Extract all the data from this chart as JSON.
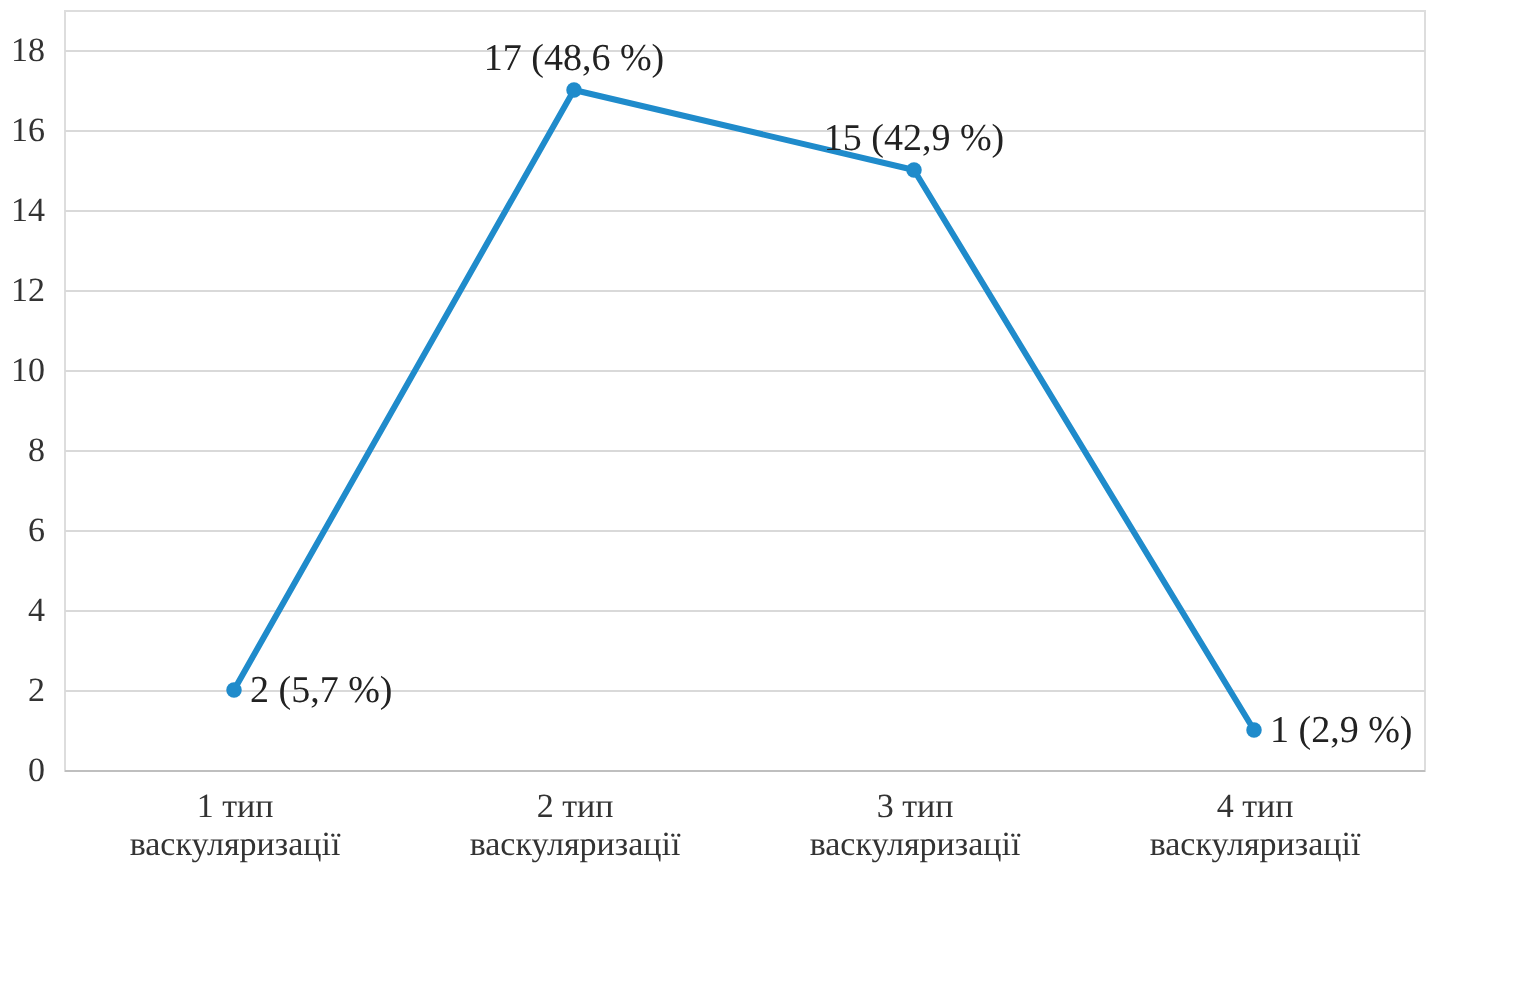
{
  "chart_data": {
    "type": "line",
    "categories": [
      "1 тип\nваскуляризації",
      "2 тип\nваскуляризації",
      "3 тип\nваскуляризації",
      "4 тип\nваскуляризації"
    ],
    "series": [
      {
        "color": "#1f8bcb",
        "values": [
          2,
          17,
          15,
          1
        ],
        "value_labels": [
          "2 (5,7 %)",
          "17 (48,6 %)",
          "15 (42,9 %)",
          "1 (2,9 %)"
        ]
      }
    ],
    "ylim": [
      0,
      19
    ],
    "yticks": [
      0,
      2,
      4,
      6,
      8,
      10,
      12,
      14,
      16,
      18
    ],
    "grid": "y",
    "marker": "circle",
    "line_style": "solid"
  }
}
